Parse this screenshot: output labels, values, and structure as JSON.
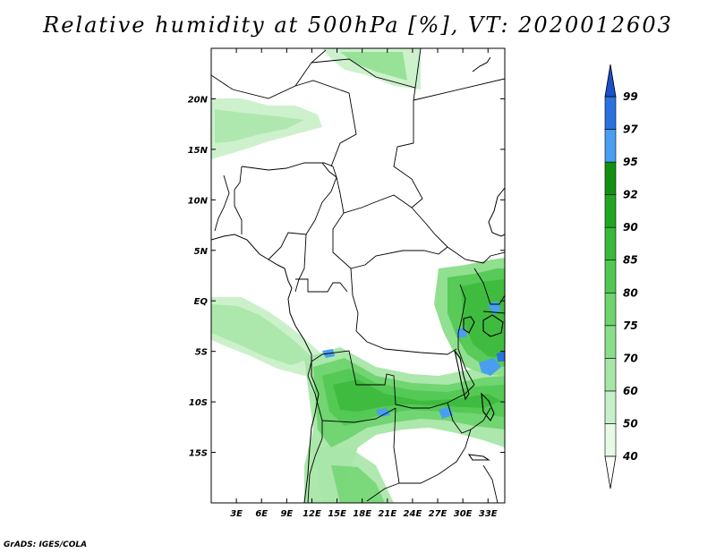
{
  "title": "Relative humidity at 500hPa [%], VT: 2020012603",
  "credit": "GrADS: IGES/COLA",
  "map": {
    "lon_range": [
      0,
      35
    ],
    "lat_range": [
      -20,
      25
    ],
    "lon_ticks": [
      "3E",
      "6E",
      "9E",
      "12E",
      "15E",
      "18E",
      "21E",
      "24E",
      "27E",
      "30E",
      "33E"
    ],
    "lat_ticks": [
      "20N",
      "15N",
      "10N",
      "5N",
      "EQ",
      "5S",
      "10S",
      "15S"
    ]
  },
  "colorbar": {
    "levels": [
      "40",
      "50",
      "60",
      "70",
      "75",
      "80",
      "85",
      "90",
      "92",
      "95",
      "97",
      "99"
    ],
    "colors": [
      "#ffffff",
      "#e6fae6",
      "#c8f0c8",
      "#a8e6a8",
      "#8ade8a",
      "#6ed46e",
      "#52c852",
      "#3ab83a",
      "#22a622",
      "#129012",
      "#4a9ef0",
      "#2a72e0",
      "#1c4fc8"
    ]
  }
}
